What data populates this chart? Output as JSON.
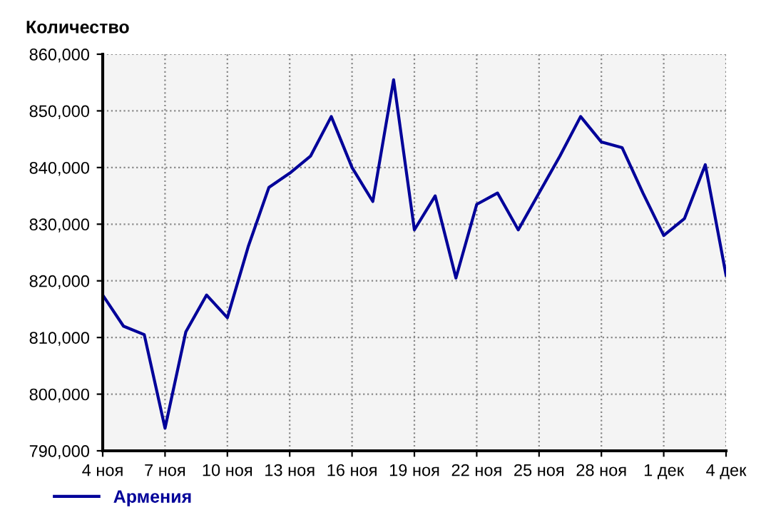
{
  "chart_data": {
    "type": "line",
    "ylabel": "Количество",
    "categories": [
      "4 ноя",
      null,
      null,
      "7 ноя",
      null,
      null,
      "10 ноя",
      null,
      null,
      "13 ноя",
      null,
      null,
      "16 ноя",
      null,
      null,
      "19 ноя",
      null,
      null,
      "22 ноя",
      null,
      null,
      "25 ноя",
      null,
      null,
      "28 ноя",
      null,
      null,
      "1 дек",
      null,
      null,
      "4 дек"
    ],
    "series": [
      {
        "name": "Армения",
        "color": "#000099",
        "values": [
          817500,
          812000,
          810500,
          794000,
          811000,
          817500,
          813500,
          826000,
          836500,
          839000,
          842000,
          849000,
          840000,
          834000,
          855500,
          829000,
          835000,
          820500,
          833500,
          835500,
          829000,
          835500,
          842000,
          849000,
          844500,
          843500,
          835500,
          828000,
          831000,
          840500,
          821000
        ]
      }
    ],
    "ylim": [
      790000,
      860000
    ],
    "yticks": [
      {
        "value": 790000,
        "label": "790,000"
      },
      {
        "value": 800000,
        "label": "800,000"
      },
      {
        "value": 810000,
        "label": "810,000"
      },
      {
        "value": 820000,
        "label": "820,000"
      },
      {
        "value": 830000,
        "label": "830,000"
      },
      {
        "value": 840000,
        "label": "840,000"
      },
      {
        "value": 850000,
        "label": "850,000"
      },
      {
        "value": 860000,
        "label": "860,000"
      }
    ],
    "grid": true,
    "legend": "bottom left",
    "marker": "none",
    "line_style": "solid"
  }
}
